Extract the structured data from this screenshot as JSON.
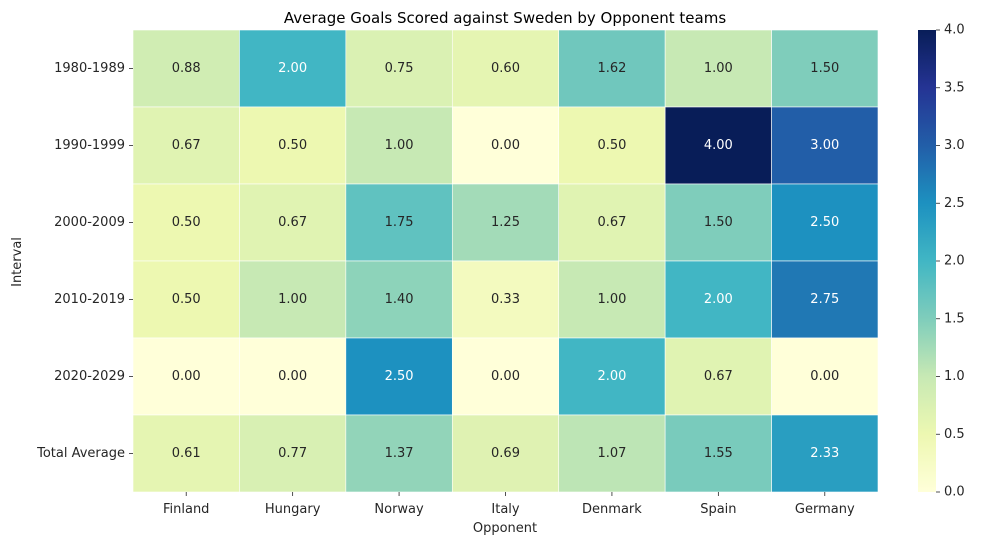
{
  "chart_data": {
    "type": "heatmap",
    "title": "Average Goals Scored against Sweden by Opponent teams",
    "xlabel": "Opponent",
    "ylabel": "Interval",
    "x_categories": [
      "Finland",
      "Hungary",
      "Norway",
      "Italy",
      "Denmark",
      "Spain",
      "Germany"
    ],
    "y_categories": [
      "1980-1989",
      "1990-1999",
      "2000-2009",
      "2010-2019",
      "2020-2029",
      "Total Average"
    ],
    "values": [
      [
        0.88,
        2.0,
        0.75,
        0.6,
        1.62,
        1.0,
        1.5
      ],
      [
        0.67,
        0.5,
        1.0,
        0.0,
        0.5,
        4.0,
        3.0
      ],
      [
        0.5,
        0.67,
        1.75,
        1.25,
        0.67,
        1.5,
        2.5
      ],
      [
        0.5,
        1.0,
        1.4,
        0.33,
        1.0,
        2.0,
        2.75
      ],
      [
        0.0,
        0.0,
        2.5,
        0.0,
        2.0,
        0.67,
        0.0
      ],
      [
        0.61,
        0.77,
        1.37,
        0.69,
        1.07,
        1.55,
        2.33
      ]
    ],
    "value_format_decimals": 2,
    "colormap": "YlGnBu",
    "vmin": 0.0,
    "vmax": 4.0,
    "colorbar_ticks": [
      0.0,
      0.5,
      1.0,
      1.5,
      2.0,
      2.5,
      3.0,
      3.5,
      4.0
    ],
    "colorbar_tick_labels": [
      "0.0",
      "0.5",
      "1.0",
      "1.5",
      "2.0",
      "2.5",
      "3.0",
      "3.5",
      "4.0"
    ],
    "cell_border_color": "#ffffff",
    "text_dark_color": "#262626",
    "text_light_color": "#ffffff"
  }
}
